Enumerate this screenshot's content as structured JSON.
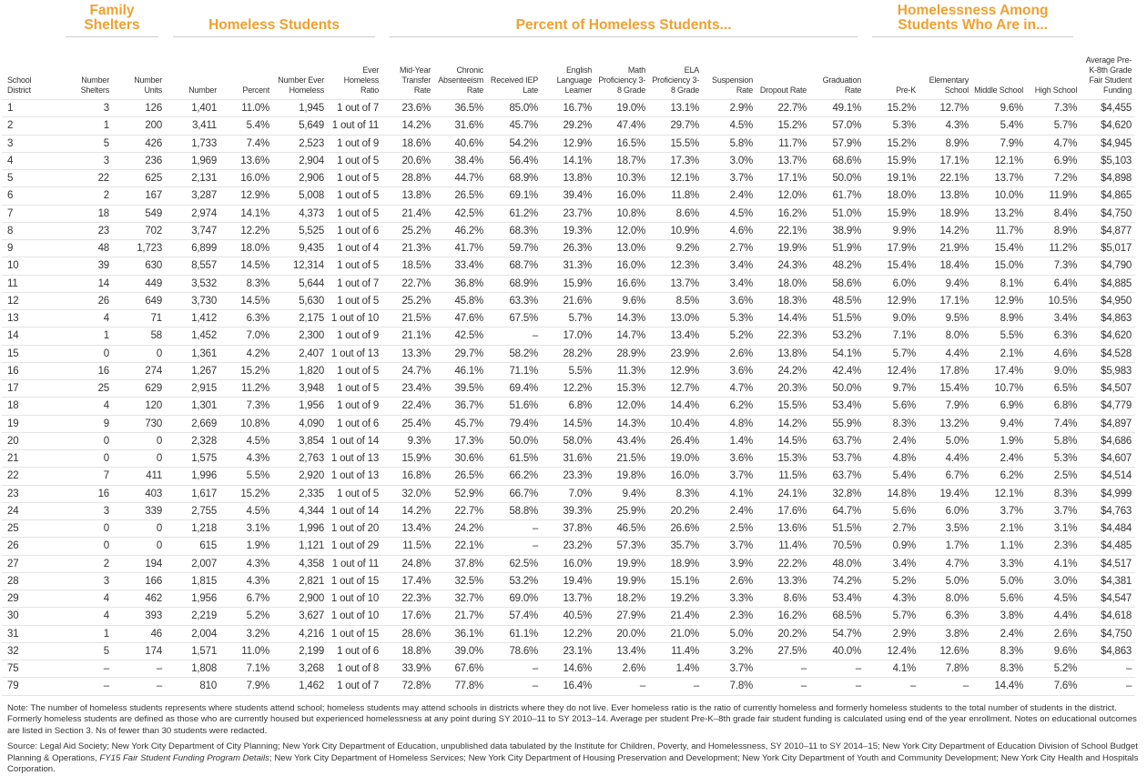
{
  "header_groups": [
    "Family Shelters",
    "Homeless Students",
    "Percent of Homeless Students...",
    "Homelessness Among Students Who Are in..."
  ],
  "columns": [
    "School District",
    "Number Shelters",
    "Number Units",
    "Number",
    "Percent",
    "Number Ever Homeless",
    "Ever Homeless Ratio",
    "Mid-Year Transfer Rate",
    "Chronic Absenteeism Rate",
    "Received IEP Late",
    "English Language Learner",
    "Math Proficiency 3-8 Grade",
    "ELA Proficiency 3-8 Grade",
    "Suspension Rate",
    "Dropout Rate",
    "Graduation Rate",
    "Pre-K",
    "Elementary School",
    "Middle School",
    "High School",
    "Average Pre-K-8th Grade Fair Student Funding"
  ],
  "rows": [
    [
      "1",
      "3",
      "126",
      "1,401",
      "11.0%",
      "1,945",
      "1 out of 7",
      "23.6%",
      "36.5%",
      "85.0%",
      "16.7%",
      "19.0%",
      "13.1%",
      "2.9%",
      "22.7%",
      "49.1%",
      "15.2%",
      "12.7%",
      "9.6%",
      "7.3%",
      "$4,455"
    ],
    [
      "2",
      "1",
      "200",
      "3,411",
      "5.4%",
      "5,649",
      "1 out of 11",
      "14.2%",
      "31.6%",
      "45.7%",
      "29.2%",
      "47.4%",
      "29.7%",
      "4.5%",
      "15.2%",
      "57.0%",
      "5.3%",
      "4.3%",
      "5.4%",
      "5.7%",
      "$4,620"
    ],
    [
      "3",
      "5",
      "426",
      "1,733",
      "7.4%",
      "2,523",
      "1 out of 9",
      "18.6%",
      "40.6%",
      "54.2%",
      "12.9%",
      "16.5%",
      "15.5%",
      "5.8%",
      "11.7%",
      "57.9%",
      "15.2%",
      "8.9%",
      "7.9%",
      "4.7%",
      "$4,945"
    ],
    [
      "4",
      "3",
      "236",
      "1,969",
      "13.6%",
      "2,904",
      "1 out of 5",
      "20.6%",
      "38.4%",
      "56.4%",
      "14.1%",
      "18.7%",
      "17.3%",
      "3.0%",
      "13.7%",
      "68.6%",
      "15.9%",
      "17.1%",
      "12.1%",
      "6.9%",
      "$5,103"
    ],
    [
      "5",
      "22",
      "625",
      "2,131",
      "16.0%",
      "2,906",
      "1 out of 5",
      "28.8%",
      "44.7%",
      "68.9%",
      "13.8%",
      "10.3%",
      "12.1%",
      "3.7%",
      "17.1%",
      "50.0%",
      "19.1%",
      "22.1%",
      "13.7%",
      "7.2%",
      "$4,898"
    ],
    [
      "6",
      "2",
      "167",
      "3,287",
      "12.9%",
      "5,008",
      "1 out of 5",
      "13.8%",
      "26.5%",
      "69.1%",
      "39.4%",
      "16.0%",
      "11.8%",
      "2.4%",
      "12.0%",
      "61.7%",
      "18.0%",
      "13.8%",
      "10.0%",
      "11.9%",
      "$4,865"
    ],
    [
      "7",
      "18",
      "549",
      "2,974",
      "14.1%",
      "4,373",
      "1 out of 5",
      "21.4%",
      "42.5%",
      "61.2%",
      "23.7%",
      "10.8%",
      "8.6%",
      "4.5%",
      "16.2%",
      "51.0%",
      "15.9%",
      "18.9%",
      "13.2%",
      "8.4%",
      "$4,750"
    ],
    [
      "8",
      "23",
      "702",
      "3,747",
      "12.2%",
      "5,525",
      "1 out of 6",
      "25.2%",
      "46.2%",
      "68.3%",
      "19.3%",
      "12.0%",
      "10.9%",
      "4.6%",
      "22.1%",
      "38.9%",
      "9.9%",
      "14.2%",
      "11.7%",
      "8.9%",
      "$4,877"
    ],
    [
      "9",
      "48",
      "1,723",
      "6,899",
      "18.0%",
      "9,435",
      "1 out of 4",
      "21.3%",
      "41.7%",
      "59.7%",
      "26.3%",
      "13.0%",
      "9.2%",
      "2.7%",
      "19.9%",
      "51.9%",
      "17.9%",
      "21.9%",
      "15.4%",
      "11.2%",
      "$5,017"
    ],
    [
      "10",
      "39",
      "630",
      "8,557",
      "14.5%",
      "12,314",
      "1 out of 5",
      "18.5%",
      "33.4%",
      "68.7%",
      "31.3%",
      "16.0%",
      "12.3%",
      "3.4%",
      "24.3%",
      "48.2%",
      "15.4%",
      "18.4%",
      "15.0%",
      "7.3%",
      "$4,790"
    ],
    [
      "11",
      "14",
      "449",
      "3,532",
      "8.3%",
      "5,644",
      "1 out of 7",
      "22.7%",
      "36.8%",
      "68.9%",
      "15.9%",
      "16.6%",
      "13.7%",
      "3.4%",
      "18.0%",
      "58.6%",
      "6.0%",
      "9.4%",
      "8.1%",
      "6.4%",
      "$4,885"
    ],
    [
      "12",
      "26",
      "649",
      "3,730",
      "14.5%",
      "5,630",
      "1 out of 5",
      "25.2%",
      "45.8%",
      "63.3%",
      "21.6%",
      "9.6%",
      "8.5%",
      "3.6%",
      "18.3%",
      "48.5%",
      "12.9%",
      "17.1%",
      "12.9%",
      "10.5%",
      "$4,950"
    ],
    [
      "13",
      "4",
      "71",
      "1,412",
      "6.3%",
      "2,175",
      "1 out of 10",
      "21.5%",
      "47.6%",
      "67.5%",
      "5.7%",
      "14.3%",
      "13.0%",
      "5.3%",
      "14.4%",
      "51.5%",
      "9.0%",
      "9.5%",
      "8.9%",
      "3.4%",
      "$4,863"
    ],
    [
      "14",
      "1",
      "58",
      "1,452",
      "7.0%",
      "2,300",
      "1 out of 9",
      "21.1%",
      "42.5%",
      "–",
      "17.0%",
      "14.7%",
      "13.4%",
      "5.2%",
      "22.3%",
      "53.2%",
      "7.1%",
      "8.0%",
      "5.5%",
      "6.3%",
      "$4,620"
    ],
    [
      "15",
      "0",
      "0",
      "1,361",
      "4.2%",
      "2,407",
      "1 out of 13",
      "13.3%",
      "29.7%",
      "58.2%",
      "28.2%",
      "28.9%",
      "23.9%",
      "2.6%",
      "13.8%",
      "54.1%",
      "5.7%",
      "4.4%",
      "2.1%",
      "4.6%",
      "$4,528"
    ],
    [
      "16",
      "16",
      "274",
      "1,267",
      "15.2%",
      "1,820",
      "1 out of 5",
      "24.7%",
      "46.1%",
      "71.1%",
      "5.5%",
      "11.3%",
      "12.9%",
      "3.6%",
      "24.2%",
      "42.4%",
      "12.4%",
      "17.8%",
      "17.4%",
      "9.0%",
      "$5,983"
    ],
    [
      "17",
      "25",
      "629",
      "2,915",
      "11.2%",
      "3,948",
      "1 out of 5",
      "23.4%",
      "39.5%",
      "69.4%",
      "12.2%",
      "15.3%",
      "12.7%",
      "4.7%",
      "20.3%",
      "50.0%",
      "9.7%",
      "15.4%",
      "10.7%",
      "6.5%",
      "$4,507"
    ],
    [
      "18",
      "4",
      "120",
      "1,301",
      "7.3%",
      "1,956",
      "1 out of 9",
      "22.4%",
      "36.7%",
      "51.6%",
      "6.8%",
      "12.0%",
      "14.4%",
      "6.2%",
      "15.5%",
      "53.4%",
      "5.6%",
      "7.9%",
      "6.9%",
      "6.8%",
      "$4,779"
    ],
    [
      "19",
      "9",
      "730",
      "2,669",
      "10.8%",
      "4,090",
      "1 out of 6",
      "25.4%",
      "45.7%",
      "79.4%",
      "14.5%",
      "14.3%",
      "10.4%",
      "4.8%",
      "14.2%",
      "55.9%",
      "8.3%",
      "13.2%",
      "9.4%",
      "7.4%",
      "$4,897"
    ],
    [
      "20",
      "0",
      "0",
      "2,328",
      "4.5%",
      "3,854",
      "1 out of 14",
      "9.3%",
      "17.3%",
      "50.0%",
      "58.0%",
      "43.4%",
      "26.4%",
      "1.4%",
      "14.5%",
      "63.7%",
      "2.4%",
      "5.0%",
      "1.9%",
      "5.8%",
      "$4,686"
    ],
    [
      "21",
      "0",
      "0",
      "1,575",
      "4.3%",
      "2,763",
      "1 out of 13",
      "15.9%",
      "30.6%",
      "61.5%",
      "31.6%",
      "21.5%",
      "19.0%",
      "3.6%",
      "15.3%",
      "53.7%",
      "4.8%",
      "4.4%",
      "2.4%",
      "5.3%",
      "$4,607"
    ],
    [
      "22",
      "7",
      "411",
      "1,996",
      "5.5%",
      "2,920",
      "1 out of 13",
      "16.8%",
      "26.5%",
      "66.2%",
      "23.3%",
      "19.8%",
      "16.0%",
      "3.7%",
      "11.5%",
      "63.7%",
      "5.4%",
      "6.7%",
      "6.2%",
      "2.5%",
      "$4,514"
    ],
    [
      "23",
      "16",
      "403",
      "1,617",
      "15.2%",
      "2,335",
      "1 out of 5",
      "32.0%",
      "52.9%",
      "66.7%",
      "7.0%",
      "9.4%",
      "8.3%",
      "4.1%",
      "24.1%",
      "32.8%",
      "14.8%",
      "19.4%",
      "12.1%",
      "8.3%",
      "$4,999"
    ],
    [
      "24",
      "3",
      "339",
      "2,755",
      "4.5%",
      "4,344",
      "1 out of 14",
      "14.2%",
      "22.7%",
      "58.8%",
      "39.3%",
      "25.9%",
      "20.2%",
      "2.4%",
      "17.6%",
      "64.7%",
      "5.6%",
      "6.0%",
      "3.7%",
      "3.7%",
      "$4,763"
    ],
    [
      "25",
      "0",
      "0",
      "1,218",
      "3.1%",
      "1,996",
      "1 out of 20",
      "13.4%",
      "24.2%",
      "–",
      "37.8%",
      "46.5%",
      "26.6%",
      "2.5%",
      "13.6%",
      "51.5%",
      "2.7%",
      "3.5%",
      "2.1%",
      "3.1%",
      "$4,484"
    ],
    [
      "26",
      "0",
      "0",
      "615",
      "1.9%",
      "1,121",
      "1 out of 29",
      "11.5%",
      "22.1%",
      "–",
      "23.2%",
      "57.3%",
      "35.7%",
      "3.7%",
      "11.4%",
      "70.5%",
      "0.9%",
      "1.7%",
      "1.1%",
      "2.3%",
      "$4,485"
    ],
    [
      "27",
      "2",
      "194",
      "2,007",
      "4.3%",
      "4,358",
      "1 out of 11",
      "24.8%",
      "37.8%",
      "62.5%",
      "16.0%",
      "19.9%",
      "18.9%",
      "3.9%",
      "22.2%",
      "48.0%",
      "3.4%",
      "4.7%",
      "3.3%",
      "4.1%",
      "$4,517"
    ],
    [
      "28",
      "3",
      "166",
      "1,815",
      "4.3%",
      "2,821",
      "1 out of 15",
      "17.4%",
      "32.5%",
      "53.2%",
      "19.4%",
      "19.9%",
      "15.1%",
      "2.6%",
      "13.3%",
      "74.2%",
      "5.2%",
      "5.0%",
      "5.0%",
      "3.0%",
      "$4,381"
    ],
    [
      "29",
      "4",
      "462",
      "1,956",
      "6.7%",
      "2,900",
      "1 out of 10",
      "22.3%",
      "32.7%",
      "69.0%",
      "13.7%",
      "18.2%",
      "19.2%",
      "3.3%",
      "8.6%",
      "53.4%",
      "4.3%",
      "8.0%",
      "5.6%",
      "4.5%",
      "$4,547"
    ],
    [
      "30",
      "4",
      "393",
      "2,219",
      "5.2%",
      "3,627",
      "1 out of 10",
      "17.6%",
      "21.7%",
      "57.4%",
      "40.5%",
      "27.9%",
      "21.4%",
      "2.3%",
      "16.2%",
      "68.5%",
      "5.7%",
      "6.3%",
      "3.8%",
      "4.4%",
      "$4,618"
    ],
    [
      "31",
      "1",
      "46",
      "2,004",
      "3.2%",
      "4,216",
      "1 out of 15",
      "28.6%",
      "36.1%",
      "61.1%",
      "12.2%",
      "20.0%",
      "21.0%",
      "5.0%",
      "20.2%",
      "54.7%",
      "2.9%",
      "3.8%",
      "2.4%",
      "2.6%",
      "$4,750"
    ],
    [
      "32",
      "5",
      "174",
      "1,571",
      "11.0%",
      "2,199",
      "1 out of 6",
      "18.8%",
      "39.0%",
      "78.6%",
      "23.1%",
      "13.4%",
      "11.4%",
      "3.2%",
      "27.5%",
      "40.0%",
      "12.4%",
      "12.6%",
      "8.3%",
      "9.6%",
      "$4,863"
    ],
    [
      "75",
      "–",
      "–",
      "1,808",
      "7.1%",
      "3,268",
      "1 out of 8",
      "33.9%",
      "67.6%",
      "–",
      "14.6%",
      "2.6%",
      "1.4%",
      "3.7%",
      "–",
      "–",
      "4.1%",
      "7.8%",
      "8.3%",
      "5.2%",
      "–"
    ],
    [
      "79",
      "–",
      "–",
      "810",
      "7.9%",
      "1,462",
      "1 out of 7",
      "72.8%",
      "77.8%",
      "–",
      "16.4%",
      "–",
      "–",
      "7.8%",
      "–",
      "–",
      "–",
      "–",
      "14.4%",
      "7.6%",
      "–"
    ]
  ],
  "note": "Note: The number of homeless students represents where students attend school; homeless students may attend schools in districts where they do not live. Ever homeless ratio is the ratio of currently homeless and formerly homeless students to the total number of students in the district. Formerly homeless students are defined as those who are currently housed but experienced homelessness at any point during SY 2010–11 to SY 2013–14. Average per student Pre-K–8th grade fair student funding is calculated using end of the year enrollment. Notes on educational outcomes are listed in Section 3. Ns of fewer than 30 students were redacted.",
  "source": [
    "Source: Legal Aid Society; New York City Department of City Planning; New York City Department of Education, unpublished data tabulated by the Institute for Children, Poverty, and Homelessness, SY 2010–11 to SY 2014–15; New York City Department of Education Division of School Budget Planning & Operations, ",
    "FY15 Fair Student Funding Program Details",
    "; New York City Department of Homeless Services; New York City Department of Housing Preservation and Development; New York City Department of Youth and Community Development; New York City Health and Hospitals Corporation."
  ]
}
